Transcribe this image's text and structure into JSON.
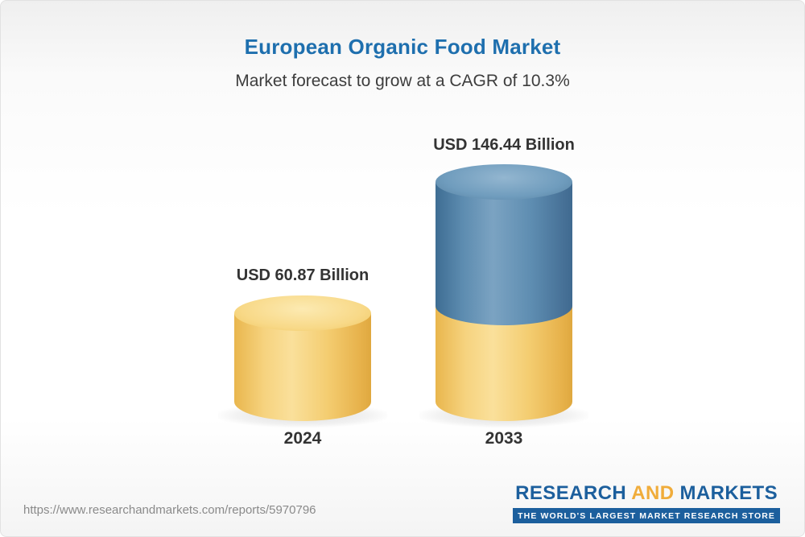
{
  "chart_data": {
    "type": "bar",
    "bar_style": "3d-cylinder",
    "title": "European Organic Food Market",
    "subtitle": "Market forecast to grow at a CAGR of 10.3%",
    "cagr_percent": 10.3,
    "categories": [
      "2024",
      "2033"
    ],
    "values": [
      60.87,
      146.44
    ],
    "value_labels": [
      "USD 60.87 Billion",
      "USD 146.44 Billion"
    ],
    "unit": "USD Billion",
    "grid": false,
    "legend": "none",
    "colors": {
      "title": "#1e6fae",
      "bar_2024": "#f5cf72",
      "bar_2033_growth": "#5687ae",
      "bar_2033_base": "#f5cf72"
    }
  },
  "footer": {
    "url": "https://www.researchandmarkets.com/reports/5970796",
    "logo": {
      "word_research": "RESEARCH",
      "word_and": "AND",
      "word_markets": "MARKETS",
      "tagline": "THE WORLD'S LARGEST MARKET RESEARCH STORE"
    }
  }
}
